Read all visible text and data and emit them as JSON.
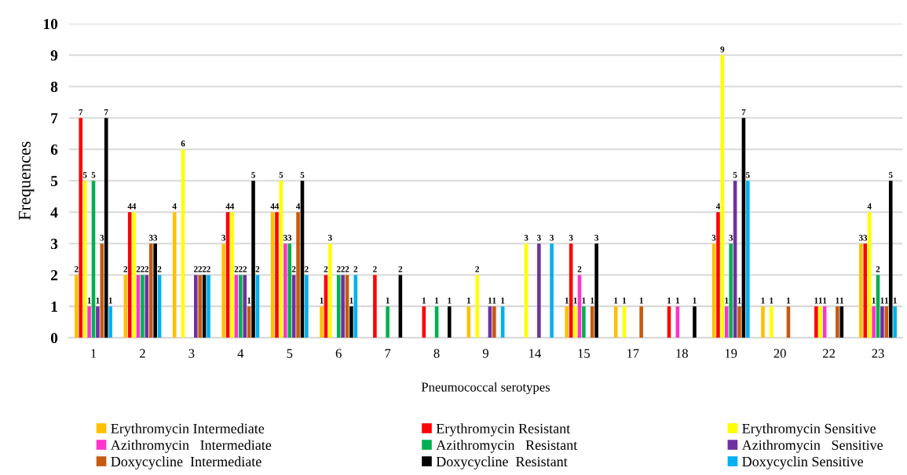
{
  "chart_data": {
    "type": "bar",
    "xlabel": "Pneumococcal serotypes",
    "ylabel": "Frequences",
    "categories": [
      "1",
      "2",
      "3",
      "4",
      "5",
      "6",
      "7",
      "8",
      "9",
      "14",
      "15",
      "17",
      "18",
      "19",
      "20",
      "22",
      "23"
    ],
    "series": [
      {
        "name": "Erythromycin Intermediate",
        "color": "#ffc000",
        "values": [
          2,
          2,
          4,
          3,
          4,
          1,
          0,
          0,
          1,
          0,
          1,
          1,
          0,
          3,
          1,
          0,
          3
        ],
        "value_labels": [
          "2",
          "2",
          "4",
          "3",
          "4",
          "1",
          null,
          null,
          "1",
          null,
          "1",
          "1",
          null,
          "3",
          "1",
          null,
          "3"
        ]
      },
      {
        "name": "Erythromycin Resistant",
        "color": "#ff0000",
        "values": [
          7,
          4,
          0,
          4,
          4,
          2,
          2,
          1,
          0,
          0,
          3,
          0,
          1,
          4,
          0,
          1,
          3
        ],
        "value_labels": [
          "7",
          "4",
          null,
          "4",
          "4",
          "2",
          "2",
          "1",
          null,
          null,
          "3",
          null,
          "1",
          "4",
          null,
          "1",
          "3"
        ]
      },
      {
        "name": "Erythromycin Sensitive",
        "color": "#ffff00",
        "values": [
          5,
          4,
          6,
          4,
          5,
          3,
          0,
          0,
          2,
          3,
          1,
          1,
          0,
          9,
          1,
          1,
          4
        ],
        "value_labels": [
          "5",
          "4",
          "6",
          "4",
          "5",
          "3",
          null,
          null,
          "2",
          "3",
          "1",
          "1",
          null,
          "9",
          "1",
          "1",
          "4"
        ]
      },
      {
        "name": "Azithromycin   Intermediate",
        "color": "#ff33cc",
        "values": [
          1,
          2,
          0,
          2,
          3,
          0,
          0,
          0,
          0,
          0,
          2,
          0,
          1,
          1,
          0,
          1,
          1
        ],
        "value_labels": [
          "1",
          "2",
          null,
          "2",
          "3",
          null,
          null,
          null,
          null,
          null,
          "2",
          null,
          "1",
          "1",
          null,
          "1",
          "1"
        ]
      },
      {
        "name": "Azithromycin   Resistant",
        "color": "#00b050",
        "values": [
          5,
          2,
          0,
          2,
          3,
          2,
          1,
          1,
          0,
          0,
          1,
          0,
          0,
          3,
          0,
          0,
          2
        ],
        "value_labels": [
          "5",
          "2",
          null,
          "2",
          "3",
          "2",
          "1",
          "1",
          null,
          null,
          "1",
          null,
          null,
          "3",
          null,
          null,
          "2"
        ]
      },
      {
        "name": "Azithromycin   Sensitive",
        "color": "#7030a0",
        "values": [
          1,
          2,
          2,
          2,
          2,
          2,
          0,
          0,
          1,
          3,
          0,
          0,
          0,
          5,
          0,
          0,
          1
        ],
        "value_labels": [
          "1",
          "2",
          "2",
          "2",
          "2",
          "2",
          null,
          null,
          "1",
          "3",
          null,
          null,
          null,
          "5",
          null,
          null,
          "1"
        ]
      },
      {
        "name": "Doxycycline  Intermediate",
        "color": "#c55a11",
        "values": [
          3,
          3,
          2,
          1,
          4,
          2,
          0,
          0,
          1,
          0,
          1,
          1,
          0,
          1,
          1,
          1,
          1
        ],
        "value_labels": [
          "3",
          "3",
          "2",
          "1",
          "4",
          "2",
          null,
          null,
          "1",
          null,
          "1",
          "1",
          null,
          "1",
          "1",
          "1",
          "1"
        ]
      },
      {
        "name": "Doxycycline  Resistant",
        "color": "#000000",
        "values": [
          7,
          3,
          2,
          5,
          5,
          1,
          2,
          1,
          0,
          0,
          3,
          0,
          1,
          7,
          0,
          1,
          5
        ],
        "value_labels": [
          "7",
          "3",
          "2",
          "5",
          "5",
          "1",
          "2",
          "1",
          null,
          null,
          "3",
          null,
          "1",
          "7",
          null,
          "1",
          "5"
        ]
      },
      {
        "name": "Doxycyclin Sensitive",
        "color": "#00b0f0",
        "values": [
          1,
          2,
          2,
          2,
          2,
          2,
          0,
          0,
          1,
          3,
          0,
          0,
          0,
          5,
          0,
          0,
          1
        ],
        "value_labels": [
          "1",
          "2",
          "2",
          "2",
          "2",
          "2",
          null,
          null,
          "1",
          "3",
          null,
          null,
          null,
          "5",
          null,
          null,
          "1"
        ]
      }
    ],
    "ylim": [
      0,
      10
    ],
    "yticks": [
      0,
      1,
      2,
      3,
      4,
      5,
      6,
      7,
      8,
      9,
      10
    ],
    "grid": "y",
    "legend": "bottom"
  }
}
